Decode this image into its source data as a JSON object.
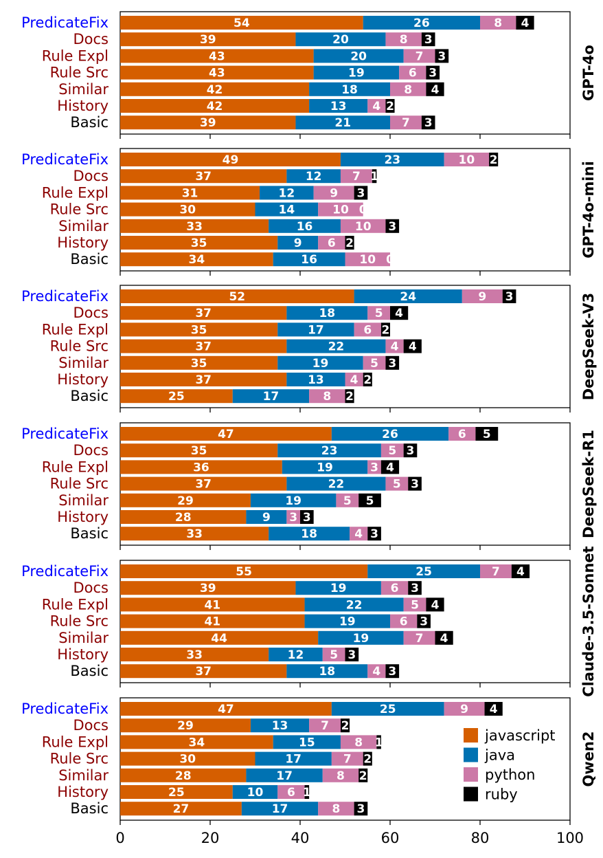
{
  "chart_data": {
    "type": "bar",
    "orientation": "horizontal",
    "stacked": true,
    "xlim": [
      0,
      100
    ],
    "xticks": [
      0,
      20,
      40,
      60,
      80,
      100
    ],
    "grid": false,
    "legend_position": "lower-right of last panel",
    "series_colors": {
      "javascript": "#d55e00",
      "java": "#0072b2",
      "python": "#cc79a7",
      "ruby": "#000000"
    },
    "legend": [
      "javascript",
      "java",
      "python",
      "ruby"
    ],
    "categories": [
      "PredicateFix",
      "Docs",
      "Rule Expl",
      "Rule Src",
      "Similar",
      "History",
      "Basic"
    ],
    "category_colors": {
      "PredicateFix": "#0000ff",
      "Docs": "#8b0000",
      "Rule Expl": "#8b0000",
      "Rule Src": "#8b0000",
      "Similar": "#8b0000",
      "History": "#8b0000",
      "Basic": "#000000"
    },
    "panels": [
      {
        "model": "GPT-4o",
        "rows": [
          {
            "category": "PredicateFix",
            "javascript": 54,
            "java": 26,
            "python": 8,
            "ruby": 4
          },
          {
            "category": "Docs",
            "javascript": 39,
            "java": 20,
            "python": 8,
            "ruby": 3
          },
          {
            "category": "Rule Expl",
            "javascript": 43,
            "java": 20,
            "python": 7,
            "ruby": 3
          },
          {
            "category": "Rule Src",
            "javascript": 43,
            "java": 19,
            "python": 6,
            "ruby": 3
          },
          {
            "category": "Similar",
            "javascript": 42,
            "java": 18,
            "python": 8,
            "ruby": 4
          },
          {
            "category": "History",
            "javascript": 42,
            "java": 13,
            "python": 4,
            "ruby": 2
          },
          {
            "category": "Basic",
            "javascript": 39,
            "java": 21,
            "python": 7,
            "ruby": 3
          }
        ]
      },
      {
        "model": "GPT-4o-mini",
        "rows": [
          {
            "category": "PredicateFix",
            "javascript": 49,
            "java": 23,
            "python": 10,
            "ruby": 2
          },
          {
            "category": "Docs",
            "javascript": 37,
            "java": 12,
            "python": 7,
            "ruby": 1
          },
          {
            "category": "Rule Expl",
            "javascript": 31,
            "java": 12,
            "python": 9,
            "ruby": 3
          },
          {
            "category": "Rule Src",
            "javascript": 30,
            "java": 14,
            "python": 10,
            "ruby": 0
          },
          {
            "category": "Similar",
            "javascript": 33,
            "java": 16,
            "python": 10,
            "ruby": 3
          },
          {
            "category": "History",
            "javascript": 35,
            "java": 9,
            "python": 6,
            "ruby": 2
          },
          {
            "category": "Basic",
            "javascript": 34,
            "java": 16,
            "python": 10,
            "ruby": 0
          }
        ]
      },
      {
        "model": "DeepSeek-V3",
        "rows": [
          {
            "category": "PredicateFix",
            "javascript": 52,
            "java": 24,
            "python": 9,
            "ruby": 3
          },
          {
            "category": "Docs",
            "javascript": 37,
            "java": 18,
            "python": 5,
            "ruby": 4
          },
          {
            "category": "Rule Expl",
            "javascript": 35,
            "java": 17,
            "python": 6,
            "ruby": 2
          },
          {
            "category": "Rule Src",
            "javascript": 37,
            "java": 22,
            "python": 4,
            "ruby": 4
          },
          {
            "category": "Similar",
            "javascript": 35,
            "java": 19,
            "python": 5,
            "ruby": 3
          },
          {
            "category": "History",
            "javascript": 37,
            "java": 13,
            "python": 4,
            "ruby": 2
          },
          {
            "category": "Basic",
            "javascript": 25,
            "java": 17,
            "python": 8,
            "ruby": 2
          }
        ]
      },
      {
        "model": "DeepSeek-R1",
        "rows": [
          {
            "category": "PredicateFix",
            "javascript": 47,
            "java": 26,
            "python": 6,
            "ruby": 5
          },
          {
            "category": "Docs",
            "javascript": 35,
            "java": 23,
            "python": 5,
            "ruby": 3
          },
          {
            "category": "Rule Expl",
            "javascript": 36,
            "java": 19,
            "python": 3,
            "ruby": 4
          },
          {
            "category": "Rule Src",
            "javascript": 37,
            "java": 22,
            "python": 5,
            "ruby": 3
          },
          {
            "category": "Similar",
            "javascript": 29,
            "java": 19,
            "python": 5,
            "ruby": 5
          },
          {
            "category": "History",
            "javascript": 28,
            "java": 9,
            "python": 3,
            "ruby": 3
          },
          {
            "category": "Basic",
            "javascript": 33,
            "java": 18,
            "python": 4,
            "ruby": 3
          }
        ]
      },
      {
        "model": "Claude-3.5-Sonnet",
        "rows": [
          {
            "category": "PredicateFix",
            "javascript": 55,
            "java": 25,
            "python": 7,
            "ruby": 4
          },
          {
            "category": "Docs",
            "javascript": 39,
            "java": 19,
            "python": 6,
            "ruby": 3
          },
          {
            "category": "Rule Expl",
            "javascript": 41,
            "java": 22,
            "python": 5,
            "ruby": 4
          },
          {
            "category": "Rule Src",
            "javascript": 41,
            "java": 19,
            "python": 6,
            "ruby": 3
          },
          {
            "category": "Similar",
            "javascript": 44,
            "java": 19,
            "python": 7,
            "ruby": 4
          },
          {
            "category": "History",
            "javascript": 33,
            "java": 12,
            "python": 5,
            "ruby": 3
          },
          {
            "category": "Basic",
            "javascript": 37,
            "java": 18,
            "python": 4,
            "ruby": 3
          }
        ]
      },
      {
        "model": "Qwen2",
        "rows": [
          {
            "category": "PredicateFix",
            "javascript": 47,
            "java": 25,
            "python": 9,
            "ruby": 4
          },
          {
            "category": "Docs",
            "javascript": 29,
            "java": 13,
            "python": 7,
            "ruby": 2
          },
          {
            "category": "Rule Expl",
            "javascript": 34,
            "java": 15,
            "python": 8,
            "ruby": 1
          },
          {
            "category": "Rule Src",
            "javascript": 30,
            "java": 17,
            "python": 7,
            "ruby": 2
          },
          {
            "category": "Similar",
            "javascript": 28,
            "java": 17,
            "python": 8,
            "ruby": 2
          },
          {
            "category": "History",
            "javascript": 25,
            "java": 10,
            "python": 6,
            "ruby": 1
          },
          {
            "category": "Basic",
            "javascript": 27,
            "java": 17,
            "python": 8,
            "ruby": 3
          }
        ]
      }
    ]
  }
}
